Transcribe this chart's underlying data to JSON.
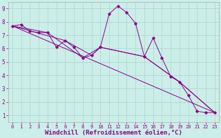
{
  "background_color": "#cceee8",
  "grid_color": "#aad4ce",
  "line_color": "#880088",
  "xlabel": "Windchill (Refroidissement éolien,°C)",
  "xlabel_fontsize": 6.5,
  "xlim": [
    -0.5,
    23.5
  ],
  "ylim": [
    0.5,
    9.5
  ],
  "yticks": [
    1,
    2,
    3,
    4,
    5,
    6,
    7,
    8,
    9
  ],
  "xticks": [
    0,
    1,
    2,
    3,
    4,
    5,
    6,
    7,
    8,
    9,
    10,
    11,
    12,
    13,
    14,
    15,
    16,
    17,
    18,
    19,
    20,
    21,
    22,
    23
  ],
  "series1_x": [
    0,
    1,
    2,
    3,
    4,
    5,
    6,
    7,
    8,
    9,
    10,
    11,
    12,
    13,
    14,
    15,
    16,
    17,
    18,
    19,
    20,
    21,
    22,
    23
  ],
  "series1_y": [
    7.7,
    7.8,
    7.3,
    7.2,
    7.2,
    6.1,
    6.6,
    6.1,
    5.3,
    5.5,
    6.1,
    8.6,
    9.2,
    8.7,
    7.9,
    5.4,
    6.8,
    5.3,
    3.9,
    3.5,
    2.5,
    1.3,
    1.2,
    1.2
  ],
  "series2_x": [
    0,
    23
  ],
  "series2_y": [
    7.7,
    1.2
  ],
  "series3_x": [
    0,
    4,
    8,
    10,
    15,
    19,
    23
  ],
  "series3_y": [
    7.7,
    7.2,
    5.3,
    6.1,
    5.4,
    3.5,
    1.2
  ],
  "series4_x": [
    0,
    6,
    9,
    10,
    15,
    19,
    23
  ],
  "series4_y": [
    7.7,
    6.6,
    5.5,
    6.1,
    5.4,
    3.5,
    1.2
  ]
}
